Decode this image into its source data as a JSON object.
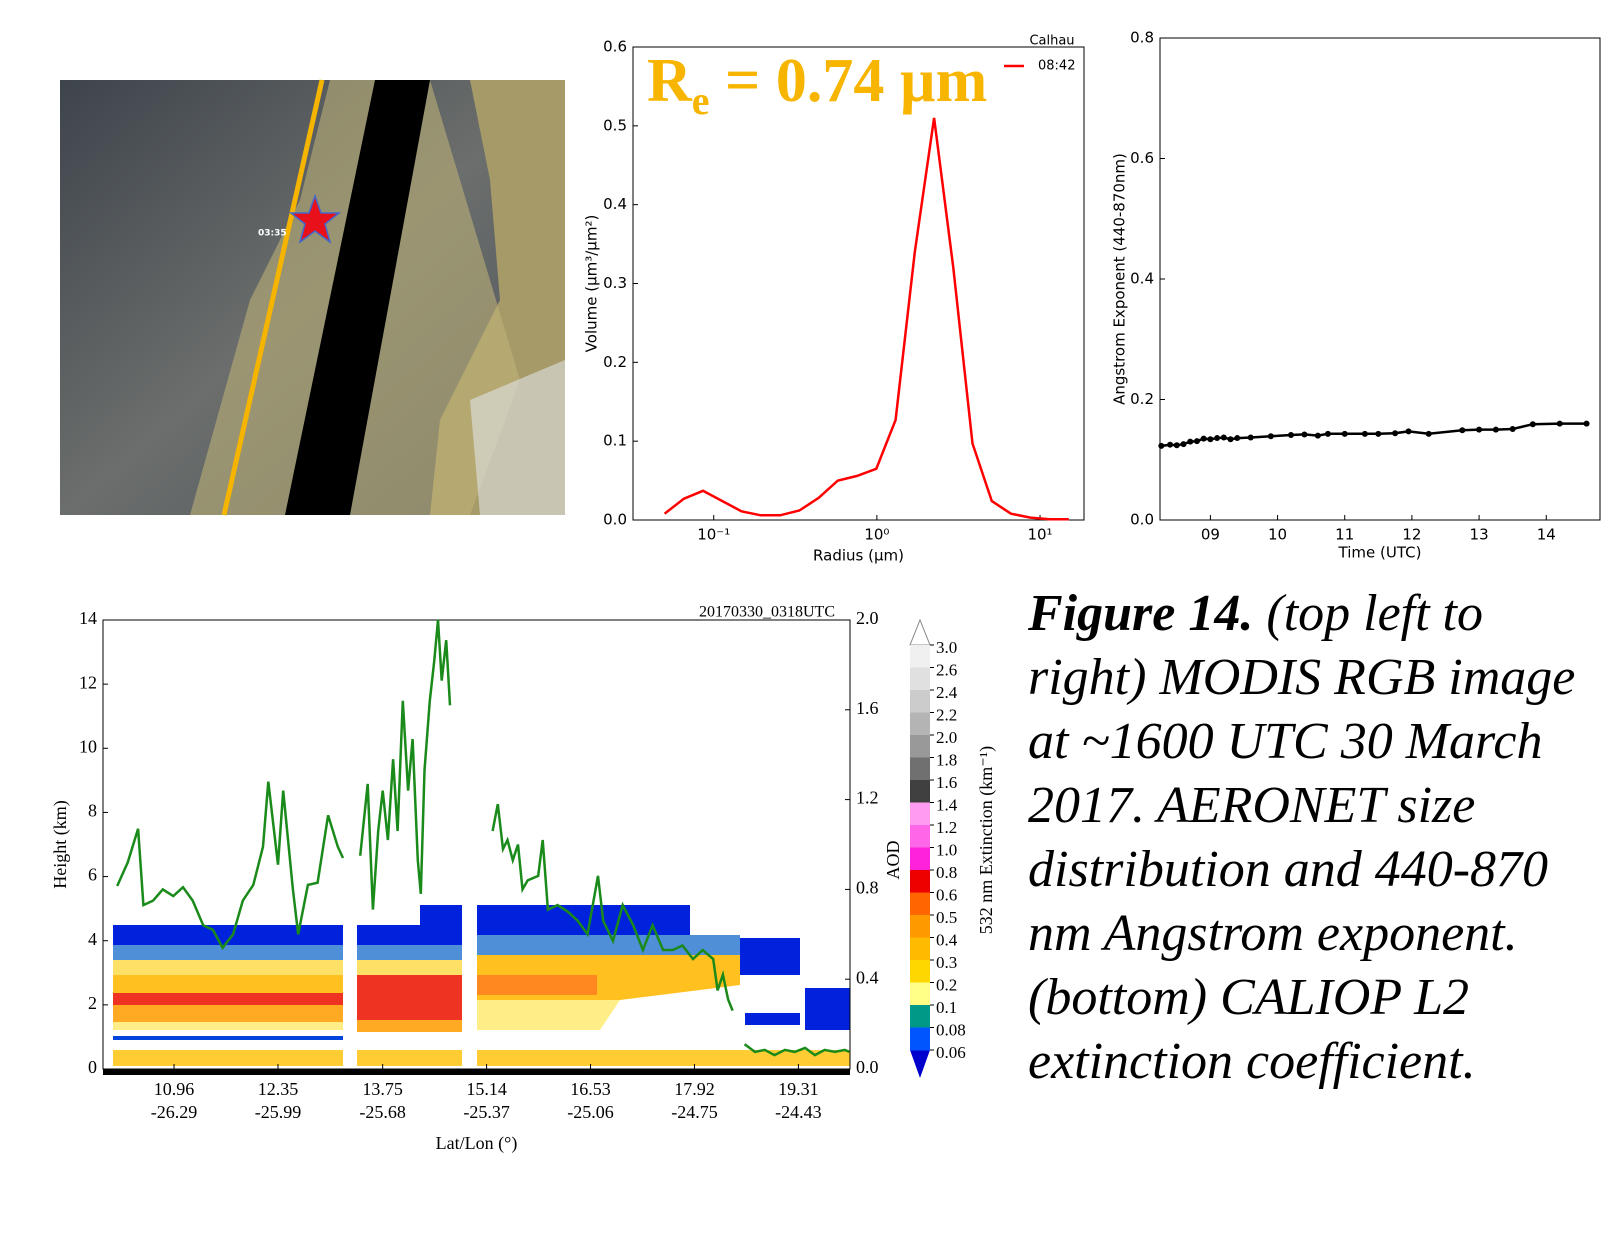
{
  "image": {
    "time_label": "03:35"
  },
  "chart_data": [
    {
      "type": "line",
      "xscale": "log",
      "xlabel": "Radius (µm)",
      "ylabel": "Volume (µm³/µm²)",
      "legend_title": "Calhau",
      "legend": "upper right",
      "annotation": {
        "base": "R",
        "subscript": "e",
        "text": " = 0.74 µm",
        "color": "#f7b500"
      },
      "x": [
        0.05,
        0.0656,
        0.086,
        0.113,
        0.148,
        0.194,
        0.255,
        0.335,
        0.439,
        0.576,
        0.756,
        0.992,
        1.302,
        1.708,
        2.241,
        2.94,
        3.857,
        5.061,
        6.641,
        8.713,
        11.432,
        15.0
      ],
      "series": [
        {
          "name": "08:42",
          "color": "#ff0000",
          "values": [
            0.008,
            0.027,
            0.037,
            0.024,
            0.011,
            0.006,
            0.006,
            0.012,
            0.028,
            0.05,
            0.056,
            0.065,
            0.127,
            0.34,
            0.51,
            0.32,
            0.097,
            0.024,
            0.008,
            0.003,
            0.001,
            0.001
          ]
        }
      ],
      "xlim": [
        0.032,
        18.6
      ],
      "xticks": [
        {
          "value": 0.1,
          "label": "10⁻¹"
        },
        {
          "value": 1,
          "label": "10⁰"
        },
        {
          "value": 10,
          "label": "10¹"
        }
      ],
      "ylim": [
        0,
        0.6
      ],
      "yticks": [
        {
          "value": 0,
          "label": "0.0"
        },
        0.1,
        0.2,
        0.3,
        0.4,
        0.5,
        0.6
      ]
    },
    {
      "type": "line",
      "xlabel": "Time (UTC)",
      "ylabel": "Angstrom Exponent (440-870nm)",
      "x": [
        8.27,
        8.4,
        8.5,
        8.6,
        8.7,
        8.8,
        8.9,
        9.0,
        9.1,
        9.2,
        9.3,
        9.4,
        9.6,
        9.9,
        10.2,
        10.4,
        10.6,
        10.75,
        11.0,
        11.3,
        11.5,
        11.75,
        11.95,
        12.25,
        12.75,
        13.0,
        13.25,
        13.5,
        13.8,
        14.2,
        14.6
      ],
      "series": [
        {
          "color": "#000000",
          "markers": true,
          "values": [
            0.123,
            0.125,
            0.124,
            0.126,
            0.13,
            0.131,
            0.135,
            0.134,
            0.136,
            0.137,
            0.134,
            0.136,
            0.137,
            0.139,
            0.141,
            0.142,
            0.14,
            0.143,
            0.143,
            0.143,
            0.143,
            0.144,
            0.147,
            0.143,
            0.149,
            0.15,
            0.15,
            0.151,
            0.159,
            0.16,
            0.16
          ]
        }
      ],
      "xlim": [
        8.25,
        14.8
      ],
      "xticks": [
        {
          "value": 9,
          "label": "09"
        },
        10,
        11,
        12,
        13,
        14
      ],
      "ylim": [
        0,
        0.8
      ],
      "yticks": [
        {
          "value": 0,
          "label": "0.0"
        },
        0.2,
        0.4,
        0.6,
        0.8
      ]
    },
    {
      "type": "line",
      "xlabel": "Lat/Lon (°)",
      "ylabel": "Height (km)",
      "y2label": "AOD",
      "annotation": "20170330_0318UTC",
      "x": [
        10.2,
        10.34,
        10.48,
        10.55,
        10.68,
        10.81,
        10.95,
        11.08,
        11.21,
        11.35,
        11.48,
        11.61,
        11.75,
        11.88,
        12.02,
        12.15,
        12.22,
        12.35,
        12.42,
        12.55,
        12.62,
        12.75,
        12.88,
        13.02,
        13.15,
        13.22,
        null,
        13.45,
        13.55,
        13.62,
        13.69,
        13.75,
        13.82,
        13.89,
        13.95,
        14.02,
        14.09,
        14.15,
        14.22,
        14.26,
        14.31,
        14.38,
        14.44,
        14.49,
        14.54,
        14.6,
        14.65,
        null,
        15.22,
        15.29,
        15.36,
        15.42,
        15.49,
        15.56,
        15.62,
        15.69,
        15.83,
        15.89,
        15.96,
        16.09,
        16.23,
        16.36,
        16.49,
        16.63,
        16.7,
        16.83,
        16.96,
        17.1,
        17.23,
        17.36,
        17.5,
        17.63,
        17.76,
        17.9,
        18.03,
        18.17,
        18.23,
        18.3,
        18.37,
        18.43,
        null,
        18.59,
        18.73,
        18.86,
        18.99,
        19.13,
        19.26,
        19.4,
        19.53,
        19.66,
        19.8,
        19.93,
        19.99
      ],
      "series": [
        {
          "color": "#1a8a1a",
          "axis": "y2",
          "values": [
            0.815,
            0.92,
            1.07,
            0.73,
            0.75,
            0.8,
            0.77,
            0.81,
            0.75,
            0.64,
            0.62,
            0.54,
            0.6,
            0.75,
            0.82,
            0.99,
            1.28,
            0.91,
            1.24,
            0.8,
            0.6,
            0.82,
            0.83,
            1.13,
            0.99,
            0.94,
            null,
            0.95,
            1.27,
            0.71,
            1.06,
            1.24,
            1.02,
            1.38,
            1.06,
            1.64,
            1.24,
            1.47,
            0.93,
            0.78,
            1.33,
            1.64,
            1.82,
            2.0,
            1.73,
            1.91,
            1.62,
            null,
            1.06,
            1.18,
            0.98,
            1.02,
            0.93,
            1.0,
            0.8,
            0.84,
            0.86,
            1.02,
            0.71,
            0.73,
            0.7,
            0.66,
            0.6,
            0.86,
            0.66,
            0.57,
            0.73,
            0.64,
            0.53,
            0.64,
            0.53,
            0.53,
            0.55,
            0.49,
            0.53,
            0.49,
            0.35,
            0.42,
            0.31,
            0.26,
            null,
            0.11,
            0.076,
            0.085,
            0.062,
            0.085,
            0.076,
            0.094,
            0.062,
            0.085,
            0.076,
            0.085,
            0.076
          ]
        }
      ],
      "xlim": [
        10.01,
        20.0
      ],
      "xtick_lat": [
        10.96,
        12.35,
        13.75,
        15.14,
        16.53,
        17.92,
        19.31
      ],
      "xtick_lon": [
        -26.29,
        -25.99,
        -25.68,
        -25.37,
        -25.06,
        -24.75,
        -24.43
      ],
      "ylim": [
        0,
        14
      ],
      "yticks": [
        0,
        2,
        4,
        6,
        8,
        10,
        12,
        14
      ],
      "y2lim": [
        0,
        2.0
      ],
      "y2ticks": [
        {
          "value": 0,
          "label": "0.0"
        },
        0.4,
        0.8,
        1.2,
        1.6,
        {
          "value": 2,
          "label": "2.0"
        }
      ],
      "colorbar": {
        "title": "532 nm Extinction (km⁻¹)",
        "levels": [
          {
            "value": 3,
            "label": "3.0"
          },
          2.6,
          2.4,
          2.2,
          {
            "value": 2,
            "label": "2.0"
          },
          1.8,
          1.6,
          1.4,
          1.2,
          {
            "value": 1,
            "label": "1.0"
          },
          0.8,
          0.6,
          0.5,
          0.4,
          0.3,
          0.2,
          0.1,
          0.08,
          0.06
        ],
        "colors": [
          "#f0f0f0",
          "#e0e0e0",
          "#cccccc",
          "#b4b4b4",
          "#999999",
          "#707070",
          "#404040",
          "#ff9bf0",
          "#ff66e8",
          "#ff22dd",
          "#ee0000",
          "#ff6600",
          "#ff9900",
          "#ffbb00",
          "#ffd700",
          "#ffff88",
          "#009988",
          "#0055ff"
        ],
        "extend_colors": [
          "#ffffff",
          "#0000cc"
        ]
      }
    }
  ],
  "caption": {
    "label": "Figure 14.",
    "text": "(top left to right) MODIS RGB image at ~1600 UTC 30 March 2017. AERONET size distribution and 440-870 nm Angstrom exponent. (bottom) CALIOP L2 extinction coefficient."
  }
}
